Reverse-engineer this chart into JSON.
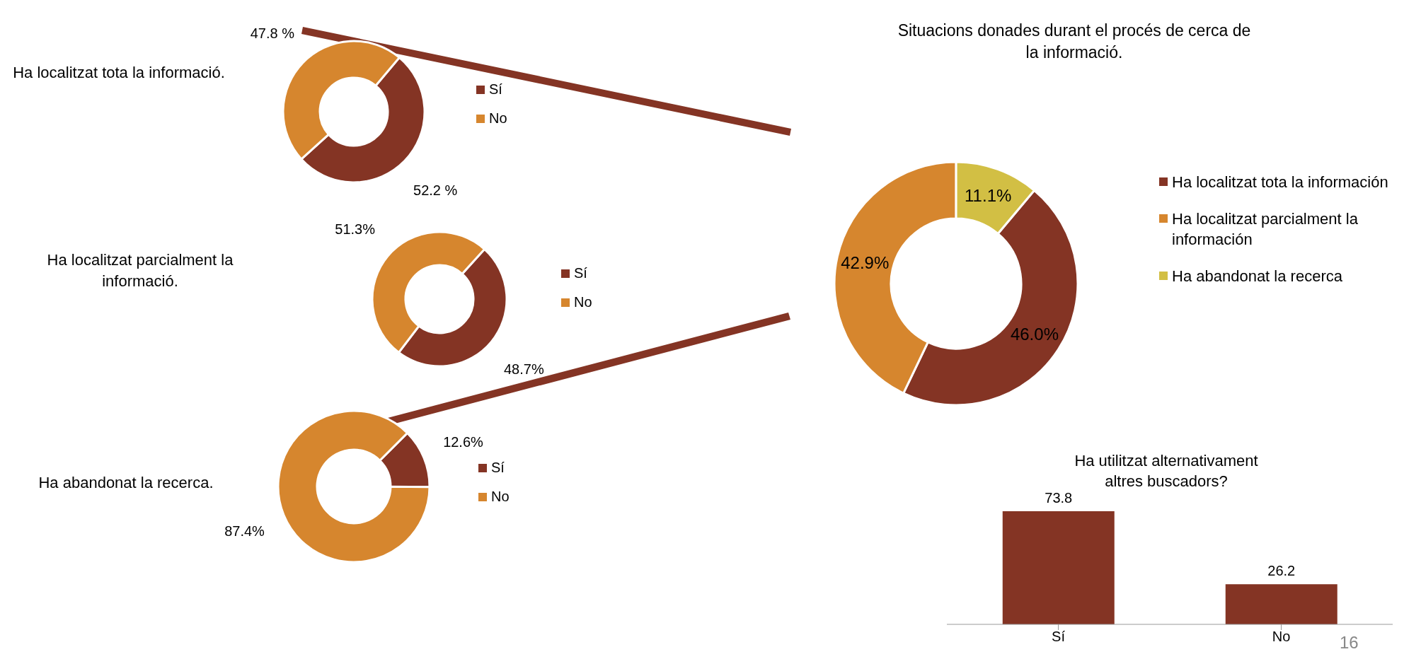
{
  "chart_data": [
    {
      "type": "donut",
      "title": "Ha localitzat tota la informació.",
      "categories": [
        "Sí",
        "No"
      ],
      "values": [
        52.2,
        47.8
      ],
      "colors": [
        "#843424",
        "#d6862e"
      ],
      "value_labels": [
        "52.2 %",
        "47.8 %"
      ],
      "legend": "right"
    },
    {
      "type": "donut",
      "title": "Ha localitzat parcialment la informació.",
      "categories": [
        "Sí",
        "No"
      ],
      "values": [
        48.7,
        51.3
      ],
      "colors": [
        "#843424",
        "#d6862e"
      ],
      "value_labels": [
        "48.7%",
        "51.3%"
      ],
      "legend": "right"
    },
    {
      "type": "donut",
      "title": "Ha abandonat la recerca.",
      "categories": [
        "Sí",
        "No"
      ],
      "values": [
        12.6,
        87.4
      ],
      "colors": [
        "#843424",
        "#d6862e"
      ],
      "value_labels": [
        "12.6%",
        "87.4%"
      ],
      "legend": "right"
    },
    {
      "type": "donut",
      "title": "Situacions donades durant el procés de cerca de la informació.",
      "categories": [
        "Ha localitzat tota la información",
        "Ha localitzat parcialment la información",
        "Ha abandonat la recerca"
      ],
      "values": [
        46.0,
        42.9,
        11.1
      ],
      "colors": [
        "#843424",
        "#d6862e",
        "#d2bf44"
      ],
      "value_labels": [
        "46.0%",
        "42.9%",
        "11.1%"
      ],
      "legend": "right"
    },
    {
      "type": "bar",
      "title": "Ha utilitzat alternativament altres buscadors?",
      "categories": [
        "Sí",
        "No"
      ],
      "values": [
        73.8,
        26.2
      ],
      "color": "#843424",
      "data_labels": true,
      "annotations": [
        "16"
      ]
    }
  ]
}
